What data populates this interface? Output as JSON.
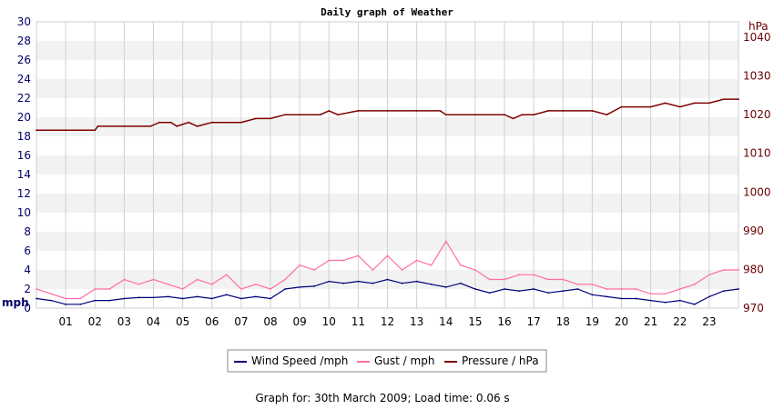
{
  "chart_data": {
    "type": "line",
    "title": "Daily graph of Weather",
    "x_ticks": [
      "01",
      "02",
      "03",
      "04",
      "05",
      "06",
      "07",
      "08",
      "09",
      "10",
      "11",
      "12",
      "13",
      "14",
      "15",
      "16",
      "17",
      "18",
      "19",
      "20",
      "21",
      "22",
      "23"
    ],
    "x_range_hours": [
      0,
      24
    ],
    "left_axis": {
      "unit": "mph",
      "ylim": [
        0,
        30
      ],
      "ticks": [
        "0",
        "2",
        "4",
        "6",
        "8",
        "10",
        "12",
        "14",
        "16",
        "18",
        "20",
        "22",
        "24",
        "26",
        "28",
        "30"
      ],
      "color": "#00006a"
    },
    "right_axis": {
      "unit": "hPa",
      "ylim": [
        970,
        1044
      ],
      "ticks": [
        "970",
        "980",
        "990",
        "1000",
        "1010",
        "1020",
        "1030",
        "1040"
      ],
      "color": "#6a0000"
    },
    "grid": true,
    "legend_position": "bottom-center",
    "series": [
      {
        "name": "Wind Speed /mph",
        "axis": "left",
        "color": "#00007c",
        "x": [
          0,
          0.5,
          1,
          1.5,
          2,
          2.5,
          3,
          3.5,
          4,
          4.5,
          5,
          5.5,
          6,
          6.5,
          7,
          7.5,
          8,
          8.5,
          9,
          9.5,
          10,
          10.5,
          11,
          11.5,
          12,
          12.5,
          13,
          13.5,
          14,
          14.5,
          15,
          15.5,
          16,
          16.5,
          17,
          17.5,
          18,
          18.5,
          19,
          19.5,
          20,
          20.5,
          21,
          21.5,
          22,
          22.5,
          23,
          23.5,
          24
        ],
        "y": [
          1,
          0.8,
          0.4,
          0.4,
          0.8,
          0.8,
          1,
          1.1,
          1.1,
          1.2,
          1.0,
          1.2,
          1.0,
          1.4,
          1.0,
          1.2,
          1.0,
          2.0,
          2.2,
          2.3,
          2.8,
          2.6,
          2.8,
          2.6,
          3.0,
          2.6,
          2.8,
          2.5,
          2.2,
          2.6,
          2.0,
          1.6,
          2.0,
          1.8,
          2.0,
          1.6,
          1.8,
          2.0,
          1.4,
          1.2,
          1.0,
          1.0,
          0.8,
          0.6,
          0.8,
          0.4,
          1.2,
          1.8,
          2.0
        ]
      },
      {
        "name": "Gust / mph",
        "axis": "left",
        "color": "#ff6ca8",
        "x": [
          0,
          0.5,
          1,
          1.5,
          2,
          2.5,
          3,
          3.5,
          4,
          4.5,
          5,
          5.5,
          6,
          6.5,
          7,
          7.5,
          8,
          8.5,
          9,
          9.5,
          10,
          10.5,
          11,
          11.5,
          12,
          12.5,
          13,
          13.5,
          14,
          14.5,
          15,
          15.5,
          16,
          16.5,
          17,
          17.5,
          18,
          18.5,
          19,
          19.5,
          20,
          20.5,
          21,
          21.5,
          22,
          22.5,
          23,
          23.5,
          24
        ],
        "y": [
          2,
          1.5,
          1,
          1,
          2,
          2,
          3,
          2.5,
          3,
          2.5,
          2,
          3,
          2.5,
          3.5,
          2,
          2.5,
          2,
          3,
          4.5,
          4,
          5,
          5,
          5.5,
          4,
          5.5,
          4,
          5,
          4.5,
          7,
          4.5,
          4,
          3,
          3,
          3.5,
          3.5,
          3,
          3,
          2.5,
          2.5,
          2,
          2,
          2,
          1.5,
          1.5,
          2,
          2.5,
          3.5,
          4,
          4
        ]
      },
      {
        "name": "Pressure / hPa",
        "axis": "right",
        "color": "#800000",
        "x": [
          0,
          1,
          2,
          2.1,
          3,
          3.9,
          4.2,
          4.6,
          4.8,
          5.2,
          5.5,
          6,
          7,
          7.5,
          8,
          8.5,
          9,
          9.7,
          10,
          10.3,
          11,
          12,
          13,
          13.8,
          14,
          15,
          16,
          16.3,
          16.6,
          17,
          17.5,
          18,
          19,
          19.5,
          20,
          21,
          21.5,
          22,
          22.5,
          23,
          23.5,
          24
        ],
        "y": [
          1016,
          1016,
          1016,
          1017,
          1017,
          1017,
          1018,
          1018,
          1017,
          1018,
          1017,
          1018,
          1018,
          1019,
          1019,
          1020,
          1020,
          1020,
          1021,
          1020,
          1021,
          1021,
          1021,
          1021,
          1020,
          1020,
          1020,
          1019,
          1020,
          1020,
          1021,
          1021,
          1021,
          1020,
          1022,
          1022,
          1023,
          1022,
          1023,
          1023,
          1024,
          1024
        ]
      }
    ]
  },
  "legend": {
    "items": [
      {
        "label": "Wind Speed /mph",
        "color": "#00007c"
      },
      {
        "label": "Gust / mph",
        "color": "#ff6ca8"
      },
      {
        "label": "Pressure / hPa",
        "color": "#800000"
      }
    ]
  },
  "footer": {
    "text": "Graph for: 30th March 2009; Load time: 0.06 s"
  }
}
